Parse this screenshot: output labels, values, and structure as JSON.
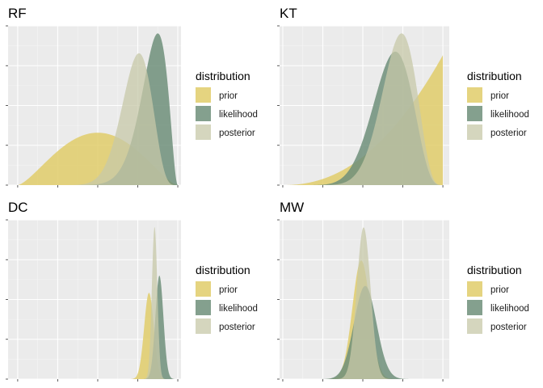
{
  "colors": {
    "prior": "#E0CC6A",
    "likelihood": "#6F8F7A",
    "posterior": "#C7C8A8",
    "panel_bg": "#EBEBEB",
    "grid_major": "#FFFFFF",
    "grid_minor": "#F5F5F5",
    "tick": "#333333"
  },
  "chart_data": [
    {
      "type": "area",
      "title": "RF",
      "x_tick_labels_shown": false,
      "y_tick_labels_shown": false,
      "x_range": [
        0,
        1
      ],
      "xlim": [
        -0.06,
        1.02
      ],
      "legend": {
        "title": "distribution",
        "entries": [
          "prior",
          "likelihood",
          "posterior"
        ],
        "placement": "right"
      },
      "series": [
        {
          "name": "prior",
          "dist": "beta",
          "a": 2.5,
          "b": 2.5
        },
        {
          "name": "likelihood",
          "dist": "beta",
          "a": 15,
          "b": 3
        },
        {
          "name": "posterior",
          "dist": "beta",
          "a": 16,
          "b": 5.8
        }
      ]
    },
    {
      "type": "area",
      "title": "KT",
      "x_tick_labels_shown": false,
      "y_tick_labels_shown": false,
      "x_range": [
        0,
        1
      ],
      "xlim": [
        -0.02,
        1.04
      ],
      "legend": {
        "title": "distribution",
        "entries": [
          "prior",
          "likelihood",
          "posterior"
        ],
        "placement": "right"
      },
      "series": [
        {
          "name": "prior",
          "dist": "beta",
          "a": 3.2,
          "b": 1
        },
        {
          "name": "likelihood",
          "dist": "beta",
          "a": 10,
          "b": 4.8
        },
        {
          "name": "posterior",
          "dist": "beta",
          "a": 12.5,
          "b": 5
        }
      ]
    },
    {
      "type": "area",
      "title": "DC",
      "x_tick_labels_shown": false,
      "y_tick_labels_shown": false,
      "x_range": [
        0,
        1
      ],
      "xlim": [
        -0.06,
        1.02
      ],
      "legend": {
        "title": "distribution",
        "entries": [
          "prior",
          "likelihood",
          "posterior"
        ],
        "placement": "right"
      },
      "series": [
        {
          "name": "prior",
          "dist": "normal",
          "mu": 0.82,
          "sd": 0.03
        },
        {
          "name": "likelihood",
          "dist": "normal",
          "mu": 0.885,
          "sd": 0.025
        },
        {
          "name": "posterior",
          "dist": "normal",
          "mu": 0.855,
          "sd": 0.017
        }
      ]
    },
    {
      "type": "area",
      "title": "MW",
      "x_tick_labels_shown": false,
      "y_tick_labels_shown": false,
      "x_range": [
        0,
        1
      ],
      "xlim": [
        -0.02,
        1.04
      ],
      "legend": {
        "title": "distribution",
        "entries": [
          "prior",
          "likelihood",
          "posterior"
        ],
        "placement": "right"
      },
      "series": [
        {
          "name": "prior",
          "dist": "normal",
          "mu": 0.49,
          "sd": 0.055
        },
        {
          "name": "likelihood",
          "dist": "normal",
          "mu": 0.515,
          "sd": 0.07
        },
        {
          "name": "posterior",
          "dist": "normal",
          "mu": 0.505,
          "sd": 0.043
        }
      ]
    }
  ]
}
